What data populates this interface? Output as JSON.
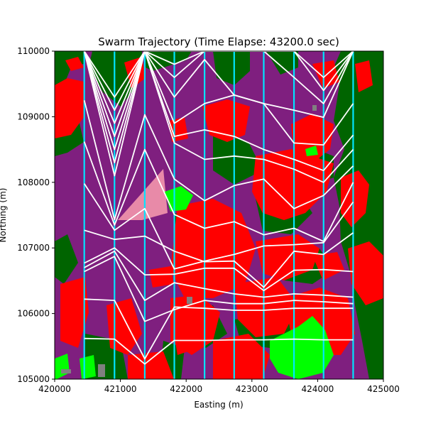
{
  "chart_data": {
    "type": "line",
    "title": "Swarm Trajectory (Time Elapse: 43200.0 sec)",
    "xlabel": "Easting (m)",
    "ylabel": "Northing (m)",
    "xlim": [
      420000,
      425000
    ],
    "ylim": [
      105000,
      110000
    ],
    "xticks": [
      420000,
      421000,
      422000,
      423000,
      424000,
      425000
    ],
    "yticks": [
      105000,
      106000,
      107000,
      108000,
      109000,
      110000
    ],
    "xtick_labels": [
      "420000",
      "421000",
      "422000",
      "423000",
      "424000",
      "425000"
    ],
    "ytick_labels": [
      "105000",
      "106000",
      "107000",
      "108000",
      "109000",
      "110000"
    ],
    "grid": false,
    "legend": "none",
    "colors": {
      "background_purple": "#7f1f7f",
      "red_zone": "#ff0000",
      "forest": "#006400",
      "bright_green": "#00ff00",
      "pink": "#e88aa8",
      "gray": "#808080",
      "vertical_paths": "#00e5ff",
      "trajectories": "#ffffff"
    },
    "agent_x": [
      420450,
      420910,
      421370,
      421820,
      422280,
      422730,
      423180,
      423640,
      424090,
      424540
    ],
    "vertical_paths_x": [
      420450,
      420910,
      421370,
      421820,
      422280,
      422730,
      423180,
      423640,
      424090,
      424540
    ],
    "series": [
      {
        "y": [
          105620,
          105610,
          105230,
          105590,
          105590,
          105600,
          105600,
          105610,
          105600,
          105600
        ]
      },
      {
        "y": [
          106220,
          106200,
          105310,
          106100,
          106080,
          106050,
          106050,
          106080,
          106080,
          106080
        ]
      },
      {
        "y": [
          106640,
          106870,
          105880,
          106060,
          106200,
          106150,
          106150,
          106200,
          106180,
          106150
        ]
      },
      {
        "y": [
          106700,
          106950,
          106200,
          106470,
          106380,
          106300,
          106250,
          106300,
          106280,
          106250
        ]
      },
      {
        "y": [
          106770,
          107000,
          106590,
          106600,
          106690,
          106690,
          106350,
          106660,
          106670,
          106640
        ]
      },
      {
        "y": [
          107270,
          107130,
          107180,
          106950,
          106790,
          106800,
          106400,
          106950,
          106900,
          107230
        ]
      },
      {
        "y": [
          107980,
          107270,
          107600,
          106680,
          106800,
          106900,
          107030,
          107050,
          107080,
          107700
        ]
      },
      {
        "y": [
          108620,
          107350,
          108500,
          107510,
          107300,
          107400,
          107200,
          107300,
          107100,
          108000
        ]
      },
      {
        "y": [
          109250,
          107430,
          109030,
          108050,
          107720,
          107950,
          108050,
          107600,
          107800,
          108250
        ]
      },
      {
        "y": [
          110000,
          108100,
          110000,
          108600,
          108350,
          108400,
          108350,
          108200,
          108000,
          108500
        ]
      },
      {
        "y": [
          110000,
          108300,
          110000,
          108700,
          108800,
          108700,
          108500,
          108350,
          108180,
          108720
        ]
      },
      {
        "y": [
          110000,
          108500,
          110000,
          108900,
          109200,
          109330,
          109200,
          108600,
          108570,
          109200
        ]
      },
      {
        "y": [
          110000,
          108700,
          110000,
          109300,
          109870,
          109330,
          109200,
          109100,
          108990,
          110000
        ]
      },
      {
        "y": [
          110000,
          108900,
          110000,
          109600,
          110000,
          110000,
          110000,
          109600,
          109200,
          110000
        ]
      },
      {
        "y": [
          110000,
          109100,
          110000,
          109800,
          110000,
          110000,
          110000,
          110000,
          109400,
          110000
        ]
      },
      {
        "y": [
          110000,
          109300,
          110000,
          110000,
          110000,
          110000,
          110000,
          110000,
          109600,
          110000
        ]
      }
    ]
  }
}
